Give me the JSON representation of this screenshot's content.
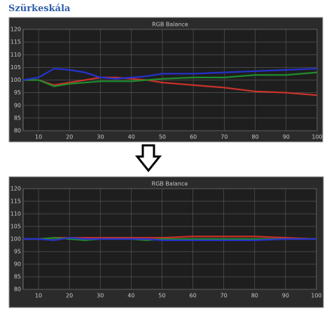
{
  "heading": "Szürkeskála",
  "chart_data": [
    {
      "type": "line",
      "title": "RGB Balance",
      "x": [
        5,
        10,
        15,
        20,
        25,
        30,
        35,
        40,
        45,
        50,
        60,
        70,
        80,
        90,
        100
      ],
      "series": [
        {
          "name": "Red",
          "color": "#c8322a",
          "values": [
            100,
            100,
            98,
            99,
            100,
            101,
            101,
            100.5,
            100,
            99,
            98,
            97,
            95.5,
            95,
            94
          ]
        },
        {
          "name": "Green",
          "color": "#1f8c2c",
          "values": [
            100,
            100,
            97.5,
            98.5,
            99,
            99.5,
            99.5,
            99.5,
            100,
            100.5,
            101,
            101,
            102,
            102,
            103
          ]
        },
        {
          "name": "Blue",
          "color": "#2632d0",
          "values": [
            100,
            101,
            104.5,
            104,
            103,
            101,
            100.5,
            101,
            101.5,
            102.5,
            102.5,
            103,
            103.5,
            104,
            104.5
          ]
        }
      ],
      "xlim": [
        5,
        100
      ],
      "xticks": [
        10,
        20,
        30,
        40,
        50,
        60,
        70,
        80,
        90,
        100
      ],
      "ylim": [
        80,
        120
      ],
      "yticks": [
        80,
        85,
        90,
        95,
        100,
        105,
        110,
        115,
        120
      ],
      "grid": true
    },
    {
      "type": "line",
      "title": "RGB Balance",
      "x": [
        5,
        10,
        15,
        20,
        25,
        30,
        35,
        40,
        45,
        50,
        60,
        70,
        80,
        90,
        100
      ],
      "series": [
        {
          "name": "Red",
          "color": "#c8322a",
          "values": [
            100,
            100,
            100.5,
            100.5,
            100.5,
            100.5,
            100.5,
            100.5,
            100.5,
            100.5,
            101,
            101,
            101,
            100.5,
            100
          ]
        },
        {
          "name": "Green",
          "color": "#1f8c2c",
          "values": [
            100,
            100,
            100.5,
            100,
            99.5,
            100,
            100,
            100,
            99.5,
            100,
            100,
            100,
            100,
            100,
            100
          ]
        },
        {
          "name": "Blue",
          "color": "#2632d0",
          "values": [
            100,
            100,
            99.5,
            100.5,
            100,
            100,
            100,
            100,
            100,
            99.5,
            99.5,
            99.5,
            99.5,
            100,
            100
          ]
        }
      ],
      "xlim": [
        5,
        100
      ],
      "xticks": [
        10,
        20,
        30,
        40,
        50,
        60,
        70,
        80,
        90,
        100
      ],
      "ylim": [
        80,
        120
      ],
      "yticks": [
        80,
        85,
        90,
        95,
        100,
        105,
        110,
        115,
        120
      ],
      "grid": true
    }
  ]
}
